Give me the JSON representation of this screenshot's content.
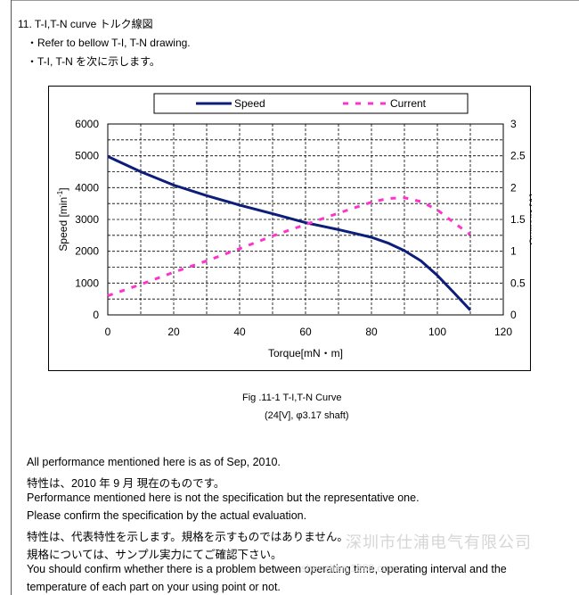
{
  "section": {
    "title": "11.   T-I,T-N curve  トルク線図",
    "line1": "・Refer to bellow T-I, T-N drawing.",
    "line2": "・T-I, T-N  を次に示します。"
  },
  "chart_data": {
    "type": "line",
    "xlabel": "Torque[mN・m]",
    "ylabel": "Speed [min",
    "ylabel_sup": "-1",
    "ylabel_end": "]",
    "y2label": "Current [A]",
    "xlim": [
      0,
      120
    ],
    "ylim": [
      0,
      6000
    ],
    "y2lim": [
      0,
      3
    ],
    "xticks": [
      "0",
      "20",
      "40",
      "60",
      "80",
      "100",
      "120"
    ],
    "yticks": [
      "0",
      "1000",
      "2000",
      "3000",
      "4000",
      "5000",
      "6000"
    ],
    "y2ticks": [
      "0",
      "0.5",
      "1",
      "1.5",
      "2",
      "2.5",
      "3"
    ],
    "grid": true,
    "legend_position": "top",
    "series": [
      {
        "name": "Speed",
        "axis": "left",
        "style": "solid",
        "color": "#0c1d7a",
        "x": [
          0,
          10,
          20,
          30,
          40,
          50,
          60,
          70,
          80,
          85,
          90,
          95,
          100,
          105,
          110
        ],
        "values": [
          4980,
          4500,
          4080,
          3750,
          3450,
          3180,
          2900,
          2680,
          2440,
          2260,
          2020,
          1700,
          1240,
          700,
          150
        ]
      },
      {
        "name": "Current",
        "axis": "right",
        "style": "dashed",
        "color": "#ff33cc",
        "x": [
          0,
          10,
          20,
          30,
          40,
          50,
          60,
          70,
          80,
          85,
          90,
          95,
          100,
          105,
          110
        ],
        "values": [
          0.3,
          0.48,
          0.67,
          0.85,
          1.04,
          1.24,
          1.42,
          1.6,
          1.77,
          1.83,
          1.84,
          1.78,
          1.65,
          1.45,
          1.26
        ]
      }
    ]
  },
  "caption": {
    "fig": "Fig .11-1     T-I,T-N Curve",
    "sub": "(24[V], φ3.17 shaft)"
  },
  "body": {
    "p1": " All performance mentioned here is as of Sep, 2010.",
    "p2": "特性は、2010 年 9 月  現在のものです。",
    "p3": "Performance mentioned here is not the specification but the representative one.",
    "p4": "Please confirm the specification by the actual evaluation.",
    "p5": "特性は、代表特性を示します。規格を示すものではありません。",
    "p6": "規格については、サンプル実力にてご確認下さい。",
    "p7": "You should confirm whether there is a problem between operating time, operating interval and the",
    "p8": "temperature of each part on your using point or not."
  },
  "watermark": {
    "text": "深圳市仕浦电气有限公司",
    "url": "shenzhen.1688.com"
  }
}
